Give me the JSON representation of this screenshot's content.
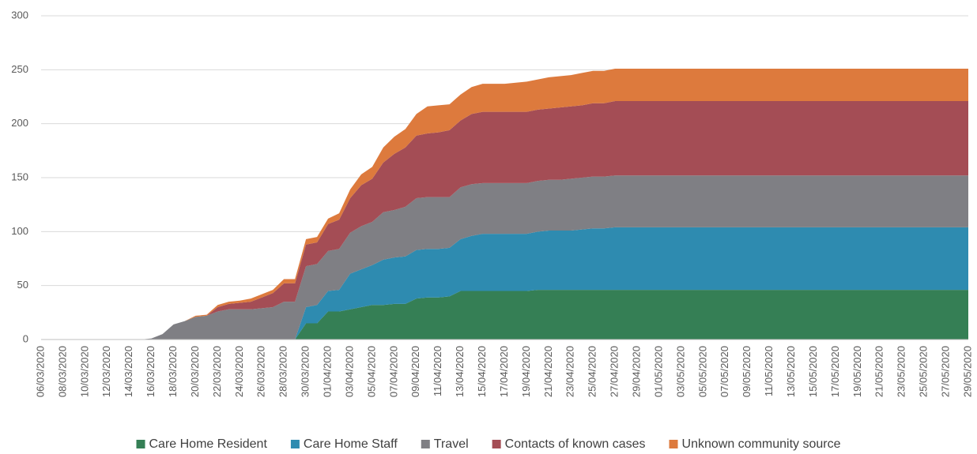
{
  "chart_data": {
    "type": "stacked_area",
    "categories": [
      "06/03/2020",
      null,
      "08/03/2020",
      null,
      "10/03/2020",
      null,
      "12/03/2020",
      null,
      "14/03/2020",
      null,
      "16/03/2020",
      null,
      "18/03/2020",
      null,
      "20/03/2020",
      null,
      "22/03/2020",
      null,
      "24/03/2020",
      null,
      "26/03/2020",
      null,
      "28/03/2020",
      null,
      "30/03/2020",
      null,
      "01/04/2020",
      null,
      "03/04/2020",
      null,
      "05/04/2020",
      null,
      "07/04/2020",
      null,
      "09/04/2020",
      null,
      "11/04/2020",
      null,
      "13/04/2020",
      null,
      "15/04/2020",
      null,
      "17/04/2020",
      null,
      "19/04/2020",
      null,
      "21/04/2020",
      null,
      "23/04/2020",
      null,
      "25/04/2020",
      null,
      "27/04/2020",
      null,
      "29/04/2020",
      null,
      "01/05/2020",
      null,
      "03/05/2020",
      null,
      "05/05/2020",
      null,
      "07/05/2020",
      null,
      "09/05/2020",
      null,
      "11/05/2020",
      null,
      "13/05/2020",
      null,
      "15/05/2020",
      null,
      "17/05/2020",
      null,
      "19/05/2020",
      null,
      "21/05/2020",
      null,
      "23/05/2020",
      null,
      "25/05/2020",
      null,
      "27/05/2020",
      null,
      "29/05/2020"
    ],
    "series": [
      {
        "name": "Care Home Resident",
        "color": "#357f55",
        "values": [
          0,
          0,
          0,
          0,
          0,
          0,
          0,
          0,
          0,
          0,
          0,
          0,
          0,
          0,
          0,
          0,
          0,
          0,
          0,
          0,
          0,
          0,
          0,
          0,
          15,
          15,
          26,
          26,
          28,
          30,
          32,
          32,
          33,
          33,
          38,
          39,
          39,
          40,
          45,
          45,
          45,
          45,
          45,
          45,
          45,
          46,
          46,
          46,
          46,
          46,
          46,
          46,
          46,
          46,
          46,
          46,
          46,
          46,
          46,
          46,
          46,
          46,
          46,
          46,
          46,
          46,
          46,
          46,
          46,
          46,
          46,
          46,
          46,
          46,
          46,
          46,
          46,
          46,
          46,
          46,
          46,
          46,
          46,
          46,
          46
        ]
      },
      {
        "name": "Care Home Staff",
        "color": "#2e8bb0",
        "values": [
          0,
          0,
          0,
          0,
          0,
          0,
          0,
          0,
          0,
          0,
          0,
          0,
          0,
          0,
          0,
          0,
          0,
          0,
          0,
          0,
          0,
          0,
          0,
          0,
          15,
          17,
          19,
          20,
          33,
          35,
          37,
          42,
          43,
          44,
          45,
          45,
          45,
          45,
          48,
          51,
          53,
          53,
          53,
          53,
          53,
          54,
          55,
          55,
          55,
          56,
          57,
          57,
          58,
          58,
          58,
          58,
          58,
          58,
          58,
          58,
          58,
          58,
          58,
          58,
          58,
          58,
          58,
          58,
          58,
          58,
          58,
          58,
          58,
          58,
          58,
          58,
          58,
          58,
          58,
          58,
          58,
          58,
          58,
          58,
          58
        ]
      },
      {
        "name": "Travel",
        "color": "#7f7f84",
        "values": [
          0,
          0,
          0,
          0,
          0,
          0,
          0,
          0,
          0,
          0,
          1,
          5,
          14,
          17,
          21,
          22,
          26,
          28,
          28,
          28,
          29,
          30,
          35,
          35,
          38,
          38,
          37,
          38,
          38,
          40,
          40,
          44,
          44,
          46,
          48,
          48,
          48,
          47,
          48,
          48,
          47,
          47,
          47,
          47,
          47,
          47,
          47,
          47,
          48,
          48,
          48,
          48,
          48,
          48,
          48,
          48,
          48,
          48,
          48,
          48,
          48,
          48,
          48,
          48,
          48,
          48,
          48,
          48,
          48,
          48,
          48,
          48,
          48,
          48,
          48,
          48,
          48,
          48,
          48,
          48,
          48,
          48,
          48,
          48,
          48
        ]
      },
      {
        "name": "Contacts of known cases",
        "color": "#a44d55",
        "values": [
          0,
          0,
          0,
          0,
          0,
          0,
          0,
          0,
          0,
          0,
          0,
          0,
          0,
          0,
          0,
          0,
          4,
          5,
          6,
          7,
          10,
          13,
          17,
          17,
          20,
          20,
          25,
          27,
          32,
          38,
          40,
          46,
          52,
          55,
          58,
          59,
          60,
          62,
          62,
          65,
          66,
          66,
          66,
          66,
          66,
          66,
          66,
          67,
          67,
          67,
          68,
          68,
          69,
          69,
          69,
          69,
          69,
          69,
          69,
          69,
          69,
          69,
          69,
          69,
          69,
          69,
          69,
          69,
          69,
          69,
          69,
          69,
          69,
          69,
          69,
          69,
          69,
          69,
          69,
          69,
          69,
          69,
          69,
          69,
          69
        ]
      },
      {
        "name": "Unknown community source",
        "color": "#dd7a3d",
        "values": [
          0,
          0,
          0,
          0,
          0,
          0,
          0,
          0,
          0,
          0,
          0,
          0,
          0,
          0,
          1,
          1,
          2,
          2,
          2,
          3,
          3,
          3,
          4,
          4,
          5,
          5,
          5,
          6,
          8,
          10,
          11,
          14,
          16,
          17,
          20,
          25,
          25,
          24,
          24,
          25,
          26,
          26,
          26,
          27,
          28,
          28,
          29,
          29,
          29,
          30,
          30,
          30,
          30,
          30,
          30,
          30,
          30,
          30,
          30,
          30,
          30,
          30,
          30,
          30,
          30,
          30,
          30,
          30,
          30,
          30,
          30,
          30,
          30,
          30,
          30,
          30,
          30,
          30,
          30,
          30,
          30,
          30,
          30,
          30,
          30
        ]
      }
    ],
    "ylim": [
      0,
      300
    ],
    "yticks": [
      0,
      50,
      100,
      150,
      200,
      250,
      300
    ],
    "grid": true,
    "legend": "bottom"
  }
}
